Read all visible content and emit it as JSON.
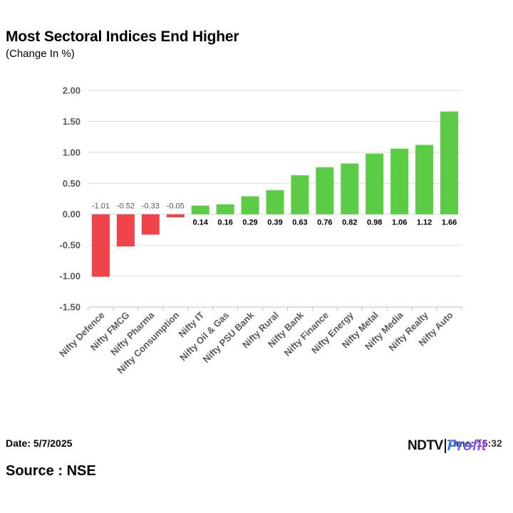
{
  "header": {
    "title": "Most Sectoral Indices End Higher",
    "subtitle": "(Change In %)"
  },
  "footer": {
    "date": "Date: 5/7/2025",
    "time": "Time: 15:32",
    "source": "Source : NSE",
    "logo_part1": "NDTV",
    "logo_part2": "Profit"
  },
  "colors": {
    "positive": "#5ccb45",
    "negative": "#f0444b",
    "grid": "#d9d9d9",
    "axis": "#bfbfbf",
    "tick_text": "#595959",
    "neg_label": "#595959",
    "pos_label": "#000000"
  },
  "chart_data": {
    "type": "bar",
    "title": "Most Sectoral Indices End Higher",
    "subtitle": "(Change In %)",
    "categories": [
      "Nifty Defence",
      "Nifty FMCG",
      "Nifty Pharma",
      "Nifty Consumption",
      "Nifty IT",
      "Nifty Oil & Gas",
      "Nifty PSU Bank",
      "Nifty Rural",
      "Nifty Bank",
      "Nifty Finance",
      "Nifty Energy",
      "Nifty Metal",
      "Nifty Media",
      "Nifty Realty",
      "Nifty Auto"
    ],
    "values": [
      -1.01,
      -0.52,
      -0.33,
      -0.05,
      0.14,
      0.16,
      0.29,
      0.39,
      0.63,
      0.76,
      0.82,
      0.98,
      1.06,
      1.12,
      1.66
    ],
    "value_labels": [
      "-1.01",
      "-0.52",
      "-0.33",
      "-0.05",
      "0.14",
      "0.16",
      "0.29",
      "0.39",
      "0.63",
      "0.76",
      "0.82",
      "0.98",
      "1.06",
      "1.12",
      "1.66"
    ],
    "ylim": [
      -1.5,
      2.0
    ],
    "yticks": [
      2.0,
      1.5,
      1.0,
      0.5,
      0.0,
      -0.5,
      -1.0,
      -1.5
    ],
    "ytick_labels": [
      "2.00",
      "1.50",
      "1.00",
      "0.50",
      "0.00",
      "-0.50",
      "-1.00",
      "-1.50"
    ],
    "xlabel": "",
    "ylabel": "",
    "grid": true,
    "legend": "none"
  }
}
